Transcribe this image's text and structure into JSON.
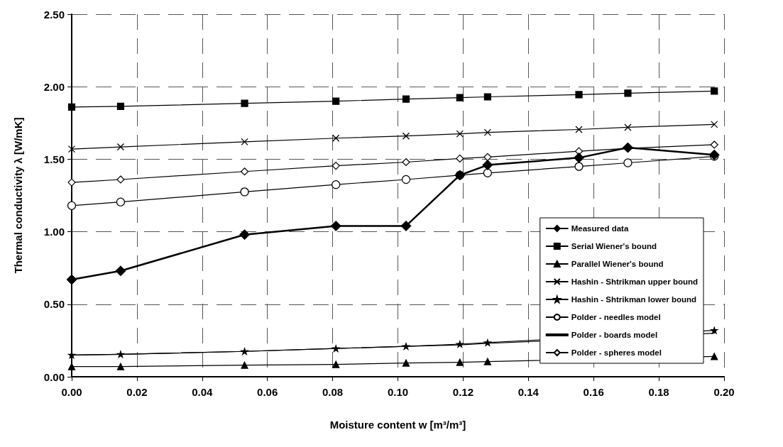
{
  "chart_data": {
    "type": "line",
    "xlabel": "Moisture content w [m³/m³]",
    "ylabel": "Thermal conductivity λ [W/mK]",
    "x": [
      0,
      0.015,
      0.053,
      0.081,
      0.1025,
      0.119,
      0.1275,
      0.1555,
      0.1705,
      0.197
    ],
    "xlim": [
      0,
      0.2
    ],
    "xticks": [
      {
        "value": 0,
        "label": "0.00"
      },
      {
        "value": 0.02,
        "label": "0.02"
      },
      {
        "value": 0.04,
        "label": "0.04"
      },
      {
        "value": 0.06,
        "label": "0.06"
      },
      {
        "value": 0.08,
        "label": "0.08"
      },
      {
        "value": 0.1,
        "label": "0.10"
      },
      {
        "value": 0.12,
        "label": "0.12"
      },
      {
        "value": 0.14,
        "label": "0.14"
      },
      {
        "value": 0.16,
        "label": "0.16"
      },
      {
        "value": 0.18,
        "label": "0.18"
      },
      {
        "value": 0.2,
        "label": "0.20"
      }
    ],
    "ylim": [
      0,
      2.5
    ],
    "yticks": [
      {
        "value": 0,
        "label": "0.00"
      },
      {
        "value": 0.5,
        "label": "0.50"
      },
      {
        "value": 1,
        "label": "1.00"
      },
      {
        "value": 1.5,
        "label": "1.50"
      },
      {
        "value": 2,
        "label": "2.00"
      },
      {
        "value": 2.5,
        "label": "2.50"
      }
    ],
    "grid": true,
    "legend": "bottom right",
    "line_style": "solid",
    "series": [
      {
        "name": "Measured data",
        "color": "#000000",
        "marker": "diamond",
        "values": [
          0.67,
          0.73,
          0.98,
          1.04,
          1.04,
          1.39,
          1.46,
          1.51,
          1.58,
          1.53
        ]
      },
      {
        "name": "Serial Wiener's bound",
        "color": "#000000",
        "marker": "square",
        "values": [
          1.86,
          1.865,
          1.885,
          1.9,
          1.915,
          1.925,
          1.93,
          1.945,
          1.955,
          1.97
        ]
      },
      {
        "name": "Parallel Wiener's bound",
        "color": "#000000",
        "marker": "triangle",
        "values": [
          0.07,
          0.07,
          0.08,
          0.085,
          0.095,
          0.1,
          0.105,
          null,
          null,
          0.14
        ]
      },
      {
        "name": "Hashin - Shtrikman upper bound",
        "color": "#000000",
        "marker": "cross",
        "values": [
          1.57,
          1.585,
          1.62,
          1.645,
          1.66,
          1.675,
          1.685,
          1.705,
          1.72,
          1.74
        ]
      },
      {
        "name": "Hashin - Shtrikman lower bound",
        "color": "#000000",
        "marker": "star",
        "values": [
          0.15,
          0.155,
          0.175,
          0.195,
          0.21,
          0.225,
          0.235,
          null,
          null,
          0.32
        ]
      },
      {
        "name": "Polder - needles model",
        "color": "#000000",
        "marker": "circle",
        "values": [
          1.18,
          1.205,
          1.275,
          1.325,
          1.36,
          1.39,
          1.405,
          1.45,
          1.475,
          1.52
        ]
      },
      {
        "name": "Polder - boards model",
        "color": "#000000",
        "marker": "none",
        "values": [
          0.15,
          0.155,
          0.175,
          0.195,
          0.21,
          0.22,
          0.23,
          null,
          null,
          0.3
        ]
      },
      {
        "name": "Polder - spheres model",
        "color": "#000000",
        "marker": "diamond",
        "values": [
          1.34,
          1.36,
          1.415,
          1.455,
          1.48,
          1.505,
          1.515,
          1.555,
          1.575,
          1.6
        ]
      }
    ]
  }
}
